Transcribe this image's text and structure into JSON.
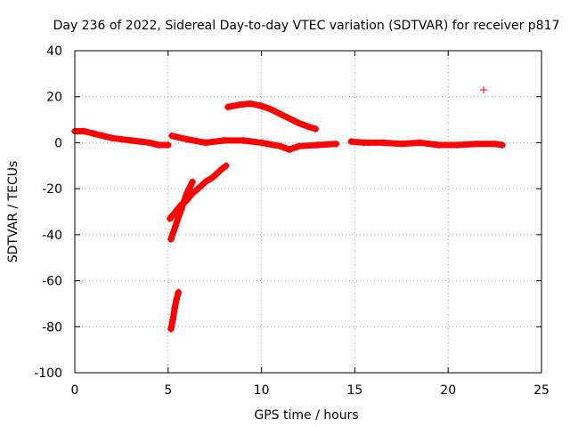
{
  "chart_data": {
    "type": "scatter",
    "title": "Day 236 of 2022, Sidereal Day-to-day VTEC variation (SDTVAR) for receiver p817",
    "xlabel": "GPS time / hours",
    "ylabel": "SDTVAR / TECUs",
    "xlim": [
      0,
      25
    ],
    "ylim": [
      -100,
      40
    ],
    "x_ticks": [
      0,
      5,
      10,
      15,
      20,
      25
    ],
    "y_ticks": [
      -100,
      -80,
      -60,
      -40,
      -20,
      0,
      20,
      40
    ],
    "x_tick_labels": [
      "0",
      "5",
      "10",
      "15",
      "20",
      "25"
    ],
    "y_tick_labels": [
      "-100",
      "-80",
      "-60",
      "-40",
      "-20",
      "0",
      "20",
      "40"
    ],
    "grid": true,
    "marker": "+",
    "color": "#ff0000",
    "series": [
      {
        "name": "main-track",
        "x": [
          0,
          0.5,
          1,
          1.5,
          2,
          2.5,
          3,
          3.5,
          4,
          4.5,
          5
        ],
        "y": [
          5,
          5,
          4,
          3,
          2,
          1.5,
          1,
          0.5,
          0,
          -1,
          -1
        ]
      },
      {
        "name": "high-arc",
        "x": [
          8.2,
          8.8,
          9.4,
          10,
          10.5,
          11,
          11.5,
          12,
          12.5,
          12.9
        ],
        "y": [
          15.5,
          16.5,
          17,
          16,
          14.5,
          12.5,
          10.5,
          8.5,
          7,
          6
        ]
      },
      {
        "name": "mid-track",
        "x": [
          5.2,
          6,
          7,
          8,
          9,
          10,
          11,
          11.5,
          12,
          13,
          14
        ],
        "y": [
          3,
          1.5,
          0,
          1,
          1,
          0,
          -1.5,
          -3,
          -1.5,
          -1,
          -0.5
        ]
      },
      {
        "name": "late-track",
        "x": [
          14.8,
          15.5,
          16.5,
          17.5,
          18.5,
          19.5,
          20.5,
          21.5,
          22.5,
          22.9
        ],
        "y": [
          0.5,
          0,
          0,
          -0.5,
          0,
          -1,
          -1,
          -0.5,
          -0.5,
          -1
        ]
      },
      {
        "name": "recovery-upper",
        "x": [
          5.1,
          5.4,
          5.7,
          6,
          6.3,
          6.6,
          7,
          7.4,
          7.8,
          8.1
        ],
        "y": [
          -33,
          -30,
          -27,
          -25,
          -22,
          -20,
          -17,
          -15,
          -12,
          -10
        ]
      },
      {
        "name": "recovery-lower",
        "x": [
          5.15,
          5.4,
          5.7,
          6,
          6.3
        ],
        "y": [
          -42,
          -36,
          -29,
          -22,
          -17
        ]
      },
      {
        "name": "deep-dip",
        "x": [
          5.15,
          5.25,
          5.35,
          5.45,
          5.55
        ],
        "y": [
          -81,
          -77,
          -72,
          -68,
          -65
        ]
      },
      {
        "name": "outlier",
        "x": [
          21.9
        ],
        "y": [
          23
        ]
      }
    ]
  }
}
